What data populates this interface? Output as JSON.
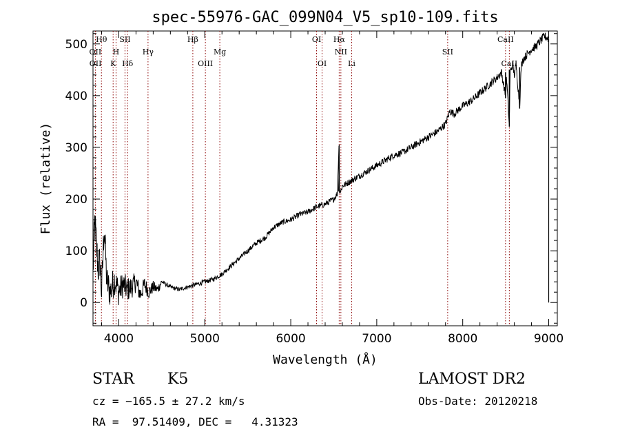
{
  "chart_data": {
    "type": "line",
    "title": "spec-55976-GAC_099N04_V5_sp10-109.fits",
    "xlabel": "Wavelength (Å)",
    "ylabel": "Flux (relative)",
    "xlim": [
      3700,
      9100
    ],
    "ylim": [
      -45,
      525
    ],
    "x_ticks": [
      4000,
      5000,
      6000,
      7000,
      8000,
      9000
    ],
    "y_ticks": [
      0,
      100,
      200,
      300,
      400,
      500
    ],
    "grid": false,
    "legend": "none",
    "line_color": "#000000",
    "marker_color": "#8b0000",
    "series": [
      {
        "x": [
          3700,
          3720,
          3740,
          3760,
          3780,
          3800,
          3830,
          3860,
          3900,
          3950,
          4000,
          4050,
          4100,
          4150,
          4200,
          4250,
          4300,
          4350,
          4400,
          4450,
          4500,
          4600,
          4700,
          4800,
          4900,
          5000,
          5100,
          5200,
          5300,
          5400,
          5500,
          5600,
          5700,
          5800,
          5900,
          6000,
          6100,
          6200,
          6300,
          6400,
          6500,
          6540,
          6560,
          6563,
          6566,
          6580,
          6600,
          6700,
          6800,
          6900,
          7000,
          7100,
          7200,
          7300,
          7400,
          7500,
          7600,
          7700,
          7800,
          7850,
          7900,
          8000,
          8100,
          8200,
          8300,
          8400,
          8450,
          8498,
          8510,
          8542,
          8550,
          8580,
          8600,
          8620,
          8662,
          8680,
          8700,
          8750,
          8800,
          8850,
          8900,
          8950,
          9000,
          9000
        ],
        "y": [
          60,
          155,
          110,
          65,
          80,
          20,
          150,
          40,
          20,
          45,
          20,
          35,
          25,
          30,
          40,
          15,
          35,
          20,
          30,
          25,
          40,
          30,
          25,
          30,
          35,
          40,
          45,
          55,
          70,
          85,
          100,
          115,
          125,
          145,
          155,
          160,
          170,
          175,
          185,
          190,
          200,
          210,
          300,
          225,
          215,
          215,
          225,
          235,
          245,
          255,
          265,
          275,
          285,
          290,
          300,
          310,
          320,
          330,
          345,
          370,
          365,
          380,
          390,
          405,
          420,
          435,
          445,
          400,
          435,
          340,
          445,
          460,
          440,
          460,
          380,
          455,
          470,
          480,
          490,
          495,
          505,
          515,
          510,
          0
        ],
        "x_jitter": [
          3700,
          4500
        ],
        "jitter_amplitude": 40
      }
    ],
    "spectral_lines": [
      {
        "label": "Hθ",
        "x": 3798,
        "row": 1
      },
      {
        "label": "OII",
        "x": 3727,
        "row": 2
      },
      {
        "label": "OII",
        "x": 3729,
        "row": 3
      },
      {
        "label": "H",
        "x": 3968,
        "row": 2
      },
      {
        "label": "K",
        "x": 3934,
        "row": 3
      },
      {
        "label": "SII",
        "x": 4072,
        "row": 1
      },
      {
        "label": "Hδ",
        "x": 4102,
        "row": 3
      },
      {
        "label": "Hγ",
        "x": 4340,
        "row": 2
      },
      {
        "label": "Hβ",
        "x": 4861,
        "row": 1
      },
      {
        "label": "OIII",
        "x": 5007,
        "row": 3
      },
      {
        "label": "Mg",
        "x": 5175,
        "row": 2
      },
      {
        "label": "OI",
        "x": 6300,
        "row": 1
      },
      {
        "label": "OI",
        "x": 6364,
        "row": 3
      },
      {
        "label": "Hα",
        "x": 6563,
        "row": 1
      },
      {
        "label": "NII",
        "x": 6583,
        "row": 2
      },
      {
        "label": "Li",
        "x": 6708,
        "row": 3
      },
      {
        "label": "SII",
        "x": 7825,
        "row": 2
      },
      {
        "label": "CaII",
        "x": 8498,
        "row": 1
      },
      {
        "label": "CaII",
        "x": 8542,
        "row": 3
      }
    ]
  },
  "info": {
    "class_label": "STAR",
    "subclass_label": "K5",
    "cz_line": "cz = −165.5 ± 27.2 km/s",
    "radec_line": "RA =  97.51409, DEC =   4.31323",
    "survey_label": "LAMOST DR2",
    "obs_date_line": "Obs-Date: 20120218"
  }
}
